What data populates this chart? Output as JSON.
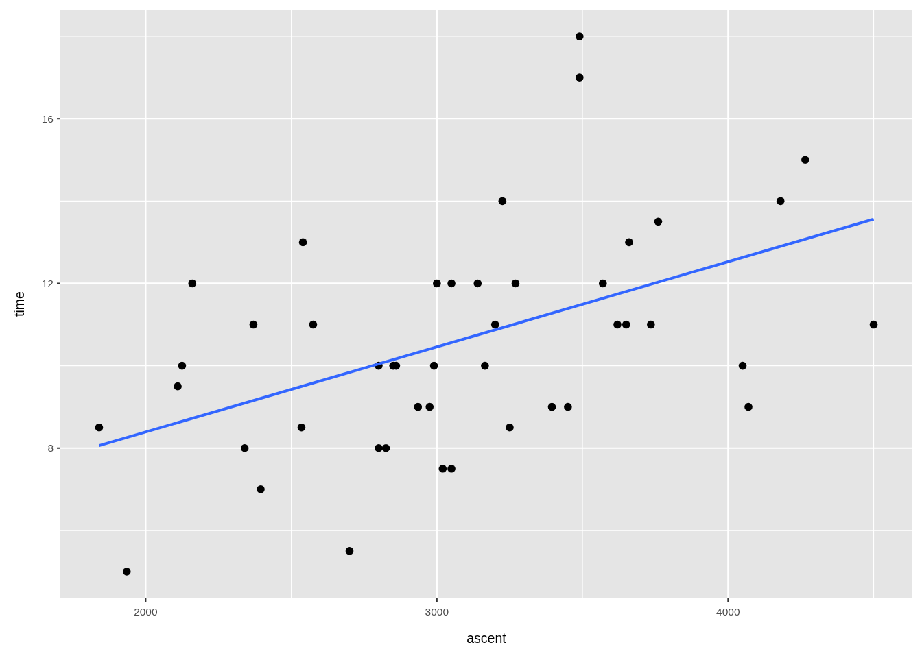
{
  "chart_data": {
    "type": "scatter",
    "xlabel": "ascent",
    "ylabel": "time",
    "xlim": [
      1707,
      4633
    ],
    "ylim": [
      4.35,
      18.65
    ],
    "xticks": [
      2000,
      3000,
      4000
    ],
    "yticks": [
      8,
      12,
      16
    ],
    "grid": true,
    "series": [
      {
        "color": "#000000",
        "marker": "circle",
        "x": [
          1840,
          1935,
          2110,
          2125,
          2160,
          2340,
          2370,
          2395,
          2535,
          2540,
          2575,
          2700,
          2800,
          2800,
          2825,
          2850,
          2860,
          2935,
          2975,
          2990,
          3000,
          3020,
          3050,
          3050,
          3140,
          3165,
          3200,
          3225,
          3250,
          3270,
          3395,
          3450,
          3490,
          3490,
          3570,
          3620,
          3650,
          3660,
          3735,
          3760,
          4050,
          4070,
          4180,
          4265,
          4500
        ],
        "values": [
          8.5,
          5,
          9.5,
          10,
          12,
          8,
          11,
          7,
          8.5,
          13,
          11,
          5.5,
          10,
          8,
          8,
          10,
          10,
          9,
          9,
          10,
          12,
          7.5,
          7.5,
          12,
          12,
          10,
          11,
          14,
          8.5,
          12,
          9,
          9,
          18,
          17,
          12,
          11,
          11,
          13,
          11,
          13.5,
          10,
          9,
          14,
          15,
          11
        ]
      },
      {
        "type": "line",
        "color": "#3366ff",
        "x": [
          1840,
          4500
        ],
        "values": [
          8.06,
          13.56
        ]
      }
    ]
  }
}
